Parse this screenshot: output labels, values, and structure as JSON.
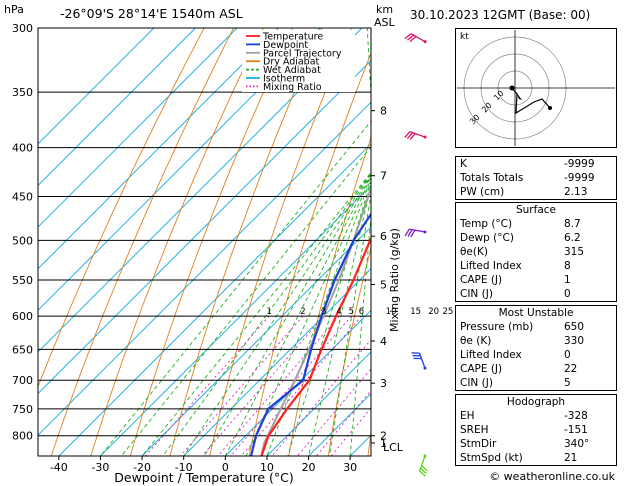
{
  "header": {
    "pressure_unit": "hPa",
    "location": "-26°09'S 28°14'E 1540m ASL",
    "km_unit": "km",
    "asl": "ASL",
    "datetime": "30.10.2023 12GMT (Base: 00)"
  },
  "legend": [
    {
      "label": "Temperature",
      "color": "#ff2020"
    },
    {
      "label": "Dewpoint",
      "color": "#1a3fd6"
    },
    {
      "label": "Parcel Trajectory",
      "color": "#a0a0a0"
    },
    {
      "label": "Dry Adiabat",
      "color": "#e08020"
    },
    {
      "label": "Wet Adiabat",
      "color": "#20b020"
    },
    {
      "label": "Isotherm",
      "color": "#20b0e0"
    },
    {
      "label": "Mixing Ratio",
      "color": "#e020c0"
    }
  ],
  "chart_data": {
    "type": "skew-t",
    "xlabel": "Dewpoint / Temperature (°C)",
    "ylabel_right": "Mixing Ratio (g/kg)",
    "x_ticks": [
      -40,
      -30,
      -20,
      -10,
      0,
      10,
      20,
      30
    ],
    "pressure_levels": [
      300,
      350,
      400,
      450,
      500,
      550,
      600,
      650,
      700,
      750,
      800
    ],
    "p_range": [
      300,
      840
    ],
    "t_range_at_base": [
      -45,
      35
    ],
    "km_ticks": [
      {
        "label": "8",
        "p": 366
      },
      {
        "label": "7",
        "p": 428
      },
      {
        "label": "6",
        "p": 495
      },
      {
        "label": "5",
        "p": 556
      },
      {
        "label": "4",
        "p": 637
      },
      {
        "label": "3",
        "p": 705
      },
      {
        "label": "2",
        "p": 800
      },
      {
        "label": "1",
        "p": 814
      }
    ],
    "lcl_label": "LCL",
    "lcl_p": 814,
    "mixing_ratio_labels": [
      "1",
      "2",
      "3",
      "4",
      "5",
      "6",
      "10",
      "15",
      "20",
      "25"
    ],
    "mixing_ratio_values": [
      1,
      2,
      3,
      4,
      5,
      6,
      10,
      15,
      20,
      25
    ],
    "mixing_ratio_label_p": 600,
    "temperature": [
      {
        "p": 840,
        "t": 8.7
      },
      {
        "p": 800,
        "t": 5.5
      },
      {
        "p": 750,
        "t": 3.5
      },
      {
        "p": 700,
        "t": 2.0
      },
      {
        "p": 650,
        "t": -2.5
      },
      {
        "p": 600,
        "t": -7.0
      },
      {
        "p": 550,
        "t": -11.5
      },
      {
        "p": 500,
        "t": -17.0
      },
      {
        "p": 450,
        "t": -22.0
      },
      {
        "p": 400,
        "t": -29.0
      },
      {
        "p": 350,
        "t": -38.5
      },
      {
        "p": 300,
        "t": -48.0
      }
    ],
    "dewpoint": [
      {
        "p": 840,
        "t": 6.2
      },
      {
        "p": 800,
        "t": 2.5
      },
      {
        "p": 750,
        "t": -1.0
      },
      {
        "p": 700,
        "t": 0.5
      },
      {
        "p": 650,
        "t": -5.0
      },
      {
        "p": 600,
        "t": -10.5
      },
      {
        "p": 550,
        "t": -16.0
      },
      {
        "p": 500,
        "t": -21.0
      },
      {
        "p": 450,
        "t": -24.5
      },
      {
        "p": 400,
        "t": -30.5
      },
      {
        "p": 350,
        "t": -40.0
      },
      {
        "p": 300,
        "t": -66.0
      }
    ],
    "parcel": [
      {
        "p": 840,
        "t": 8.7
      },
      {
        "p": 814,
        "t": 6.2
      },
      {
        "p": 750,
        "t": 2.0
      },
      {
        "p": 700,
        "t": -1.5
      },
      {
        "p": 650,
        "t": -5.5
      },
      {
        "p": 600,
        "t": -10.0
      },
      {
        "p": 550,
        "t": -15.0
      },
      {
        "p": 500,
        "t": -21.0
      },
      {
        "p": 450,
        "t": -28.0
      },
      {
        "p": 400,
        "t": -36.0
      },
      {
        "p": 350,
        "t": -45.0
      },
      {
        "p": 300,
        "t": -55.0
      }
    ],
    "wind_barbs": [
      {
        "p": 310,
        "dir": 300,
        "color": "#e0106a"
      },
      {
        "p": 390,
        "dir": 290,
        "color": "#e0106a"
      },
      {
        "p": 490,
        "dir": 280,
        "color": "#8020d0"
      },
      {
        "p": 680,
        "dir": 340,
        "color": "#2040e0"
      },
      {
        "p": 840,
        "dir": 200,
        "color": "#60d020"
      }
    ]
  },
  "hodograph": {
    "unit_label": "kt",
    "ring_labels": [
      "10",
      "20",
      "30"
    ]
  },
  "indices": [
    {
      "label": "K",
      "value": "-9999"
    },
    {
      "label": "Totals Totals",
      "value": "-9999"
    },
    {
      "label": "PW (cm)",
      "value": "2.13"
    }
  ],
  "surface": {
    "title": "Surface",
    "rows": [
      {
        "label": "Temp (°C)",
        "value": "8.7"
      },
      {
        "label": "Dewp (°C)",
        "value": "6.2"
      },
      {
        "label": "θe(K)",
        "value": "315"
      },
      {
        "label": "Lifted Index",
        "value": "8"
      },
      {
        "label": "CAPE (J)",
        "value": "1"
      },
      {
        "label": "CIN (J)",
        "value": "0"
      }
    ]
  },
  "most_unstable": {
    "title": "Most Unstable",
    "rows": [
      {
        "label": "Pressure (mb)",
        "value": "650"
      },
      {
        "label": "θe (K)",
        "value": "330"
      },
      {
        "label": "Lifted Index",
        "value": "0"
      },
      {
        "label": "CAPE (J)",
        "value": "22"
      },
      {
        "label": "CIN (J)",
        "value": "5"
      }
    ]
  },
  "hodograph_indices": {
    "title": "Hodograph",
    "rows": [
      {
        "label": "EH",
        "value": "-328"
      },
      {
        "label": "SREH",
        "value": "-151"
      },
      {
        "label": "StmDir",
        "value": "340°"
      },
      {
        "label": "StmSpd (kt)",
        "value": "21"
      }
    ]
  },
  "footer": "© weatheronline.co.uk"
}
